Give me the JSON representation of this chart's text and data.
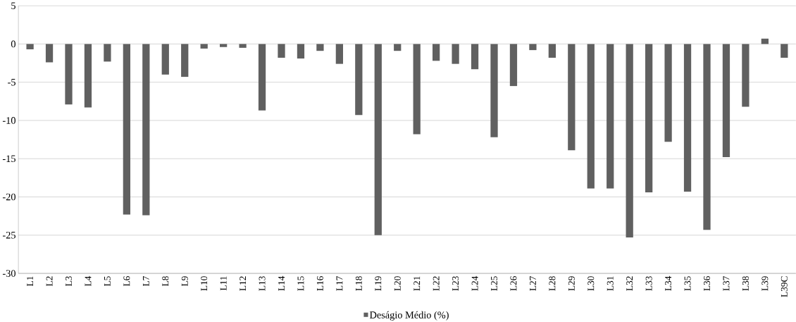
{
  "chart_data": {
    "type": "bar",
    "categories": [
      "L1",
      "L2",
      "L3",
      "L4",
      "L5",
      "L6",
      "L7",
      "L8",
      "L9",
      "L10",
      "L11",
      "L12",
      "L13",
      "L14",
      "L15",
      "L16",
      "L17",
      "L18",
      "L19",
      "L20",
      "L21",
      "L22",
      "L23",
      "L24",
      "L25",
      "L26",
      "L27",
      "L28",
      "L29",
      "L30",
      "L31",
      "L32",
      "L33",
      "L34",
      "L35",
      "L36",
      "L37",
      "L38",
      "L39",
      "L39C"
    ],
    "series": [
      {
        "name": "Deságio Médio (%)",
        "color": "#606060",
        "values": [
          -0.7,
          -2.4,
          -7.9,
          -8.3,
          -2.3,
          -22.3,
          -22.4,
          -4.0,
          -4.3,
          -0.6,
          -0.4,
          -0.5,
          -8.7,
          -1.8,
          -1.9,
          -0.9,
          -2.6,
          -9.3,
          -25.0,
          -0.9,
          -11.8,
          -2.2,
          -2.6,
          -3.3,
          -12.2,
          -5.5,
          -0.8,
          -1.8,
          -13.9,
          -18.9,
          -18.9,
          -25.3,
          -19.4,
          -12.8,
          -19.3,
          -24.3,
          -14.8,
          -8.2,
          0.7,
          -1.8
        ]
      }
    ],
    "ylim": [
      -30,
      5
    ],
    "yticks": [
      -30,
      -25,
      -20,
      -15,
      -10,
      -5,
      0,
      5
    ],
    "grid": "y",
    "legend": "bottom"
  }
}
